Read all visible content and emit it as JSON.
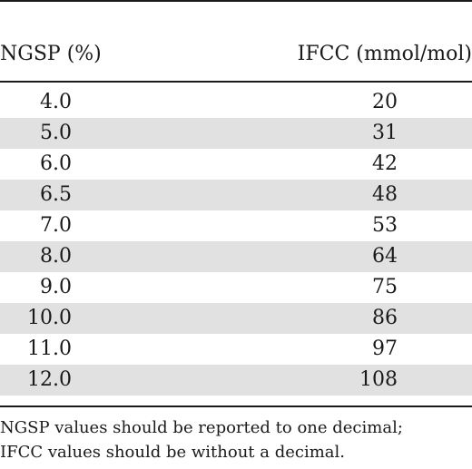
{
  "table": {
    "headers": {
      "ngsp": "NGSP (%)",
      "ifcc": "IFCC (mmol/mol)"
    },
    "rows": [
      {
        "ngsp": "4.0",
        "ifcc": "20"
      },
      {
        "ngsp": "5.0",
        "ifcc": "31"
      },
      {
        "ngsp": "6.0",
        "ifcc": "42"
      },
      {
        "ngsp": "6.5",
        "ifcc": "48"
      },
      {
        "ngsp": "7.0",
        "ifcc": "53"
      },
      {
        "ngsp": "8.0",
        "ifcc": "64"
      },
      {
        "ngsp": "9.0",
        "ifcc": "75"
      },
      {
        "ngsp": "10.0",
        "ifcc": "86"
      },
      {
        "ngsp": "11.0",
        "ifcc": "97"
      },
      {
        "ngsp": "12.0",
        "ifcc": "108"
      }
    ]
  },
  "footnote": {
    "line1": "NGSP values should be reported to one decimal;",
    "line2": "IFCC values should be without a decimal."
  },
  "colors": {
    "shaded_row": "#e1e1e1",
    "rule": "#1a1a1a",
    "text": "#1a1a1a"
  }
}
